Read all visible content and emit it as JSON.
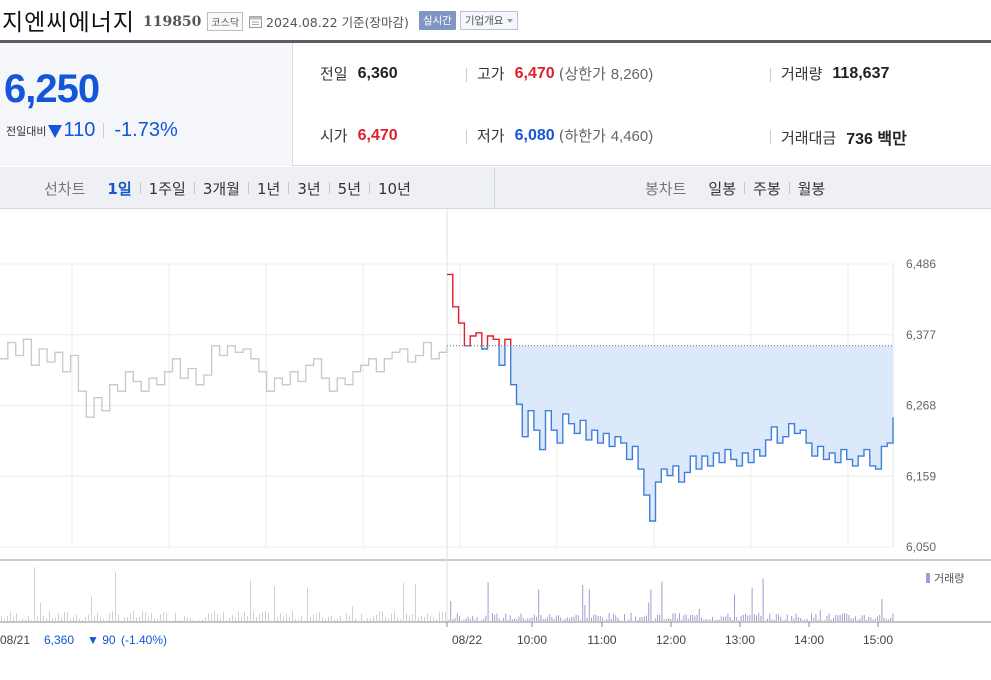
{
  "header": {
    "company_name": "지엔씨에너지",
    "stock_code": "119850",
    "market": "코스닥",
    "as_of": "2024.08.22  기준(장마감)",
    "realtime_label": "실시간",
    "company_info_label": "기업개요"
  },
  "price": {
    "current": "6,250",
    "change_label": "전일대비",
    "change_value": "110",
    "change_pct": "-1.73%",
    "direction": "down"
  },
  "stats": {
    "prev_close": {
      "label": "전일",
      "value": "6,360"
    },
    "high": {
      "label": "고가",
      "value": "6,470",
      "limit_label": "(상한가",
      "limit_value": "8,260)"
    },
    "volume": {
      "label": "거래량",
      "value": "118,637"
    },
    "open": {
      "label": "시가",
      "value": "6,470"
    },
    "low": {
      "label": "저가",
      "value": "6,080",
      "limit_label": "(하한가",
      "limit_value": "4,460)"
    },
    "trade_value": {
      "label": "거래대금",
      "value": "736 백만"
    }
  },
  "toolbar": {
    "line_chart_label": "선차트",
    "periods": [
      "1일",
      "1주일",
      "3개월",
      "1년",
      "3년",
      "5년",
      "10년"
    ],
    "active_period": "1일",
    "candle_chart_label": "봉차트",
    "candle_periods": [
      "일봉",
      "주봉",
      "월봉"
    ]
  },
  "colors": {
    "up": "#e0202a",
    "down": "#1356d8",
    "accent": "#1a55c9",
    "prev_day_line": "#c8c8cc",
    "today_line": "#3f7fd9",
    "fill": "#dce9fa",
    "volume_bar": "#a99bd1"
  },
  "chart_data": {
    "type": "line",
    "y_ticks": [
      "6,486",
      "6,377",
      "6,268",
      "6,159",
      "6,050"
    ],
    "y_tick_values": [
      6486,
      6377,
      6268,
      6159,
      6050
    ],
    "ylim": [
      6050,
      6486
    ],
    "x_ticks": [
      "08/22",
      "10:00",
      "11:00",
      "12:00",
      "13:00",
      "14:00",
      "15:00"
    ],
    "reference_price": 6360,
    "volume_legend": "거래량",
    "prev_day_summary": {
      "date": "08/21",
      "close": "6,360",
      "change": "▼ 90",
      "pct": "(-1.40%)"
    },
    "series": [
      {
        "session": "08/21",
        "values": [
          6340,
          6365,
          6345,
          6370,
          6330,
          6355,
          6335,
          6350,
          6320,
          6345,
          6290,
          6250,
          6280,
          6260,
          6300,
          6290,
          6320,
          6305,
          6290,
          6310,
          6300,
          6320,
          6340,
          6310,
          6325,
          6300,
          6315,
          6360,
          6345,
          6360,
          6350,
          6355,
          6340,
          6320,
          6290,
          6310,
          6300,
          6320,
          6305,
          6330,
          6340,
          6310,
          6290,
          6310,
          6300,
          6320,
          6330,
          6340,
          6320,
          6340,
          6350,
          6355,
          6335,
          6345,
          6365,
          6340,
          6350,
          6360
        ]
      },
      {
        "session": "08/22",
        "values": [
          6470,
          6420,
          6395,
          6360,
          6375,
          6380,
          6355,
          6375,
          6370,
          6330,
          6370,
          6300,
          6270,
          6220,
          6260,
          6230,
          6200,
          6260,
          6230,
          6210,
          6255,
          6240,
          6225,
          6245,
          6215,
          6230,
          6210,
          6225,
          6205,
          6220,
          6210,
          6185,
          6205,
          6170,
          6130,
          6090,
          6150,
          6170,
          6160,
          6175,
          6150,
          6165,
          6190,
          6170,
          6190,
          6175,
          6195,
          6180,
          6200,
          6185,
          6175,
          6195,
          6180,
          6200,
          6190,
          6215,
          6235,
          6210,
          6220,
          6240,
          6225,
          6230,
          6210,
          6190,
          6205,
          6185,
          6195,
          6180,
          6200,
          6185,
          6175,
          6190,
          6200,
          6175,
          6170,
          6205,
          6210,
          6250
        ]
      }
    ]
  }
}
